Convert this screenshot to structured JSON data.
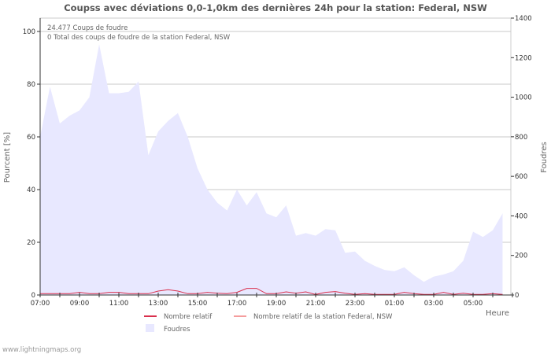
{
  "chart_data": {
    "type": "area",
    "title": "Coupss avec déviations 0,0-1,0km des dernières 24h pour la station: Federal, NSW",
    "xlabel": "Heure",
    "ylabel_left": "Pourcent   [%]",
    "ylabel_right": "Foudres",
    "ylim_left": [
      0,
      105
    ],
    "ylim_right": [
      0,
      1400
    ],
    "left_ticks": [
      0,
      20,
      40,
      60,
      80,
      100
    ],
    "right_ticks": [
      0,
      200,
      400,
      600,
      800,
      1000,
      1200,
      1400
    ],
    "x_tick_labels": [
      "07:00",
      "09:00",
      "11:00",
      "13:00",
      "15:00",
      "17:00",
      "19:00",
      "21:00",
      "23:00",
      "01:00",
      "03:00",
      "05:00"
    ],
    "x_hours_start": "07:00",
    "x_step_hours": 0.5,
    "info_lines": [
      "24.477  Coups de foudre",
      "0 Total des coups de foudre de la station Federal, NSW"
    ],
    "grid": true,
    "legend": [
      {
        "label": "Nombre relatif",
        "color": "#d9304d",
        "type": "line"
      },
      {
        "label": "Nombre relatif de la station Federal, NSW",
        "color": "#f59d9d",
        "type": "line"
      },
      {
        "label": "Foudres",
        "color": "#e8e8ff",
        "type": "area"
      }
    ],
    "series": [
      {
        "name": "Foudres",
        "axis": "right",
        "values": [
          800,
          1053,
          867,
          907,
          933,
          1000,
          1267,
          1020,
          1020,
          1027,
          1080,
          707,
          827,
          880,
          920,
          800,
          640,
          533,
          467,
          427,
          533,
          453,
          520,
          413,
          393,
          453,
          300,
          313,
          300,
          333,
          327,
          213,
          220,
          173,
          147,
          127,
          120,
          140,
          100,
          67,
          93,
          104,
          120,
          173,
          320,
          293,
          327,
          413
        ]
      },
      {
        "name": "Nombre relatif",
        "axis": "left",
        "values": [
          0.5,
          0.5,
          0.5,
          0.5,
          1,
          0.5,
          0.5,
          1,
          1,
          0.5,
          0.5,
          0.5,
          1.5,
          2,
          1.5,
          0.5,
          0.5,
          1,
          0.7,
          0.5,
          1,
          2.5,
          2.5,
          0.5,
          0.5,
          1.2,
          0.7,
          1.2,
          0.2,
          1,
          1.3,
          0.7,
          0.2,
          0.5,
          0.2,
          0.2,
          0.2,
          1,
          0.5,
          0.2,
          0.2,
          1,
          0.2,
          0.7,
          0.2,
          0.2,
          0.5,
          0.2
        ]
      },
      {
        "name": "Nombre relatif de la station Federal, NSW",
        "axis": "left",
        "values": [
          0,
          0,
          0,
          0,
          0,
          0,
          0,
          0,
          0,
          0,
          0,
          0,
          0,
          0,
          0,
          0,
          0,
          0,
          0,
          0,
          0,
          0,
          0,
          0,
          0,
          0,
          0,
          0,
          0,
          0,
          0,
          0,
          0,
          0,
          0,
          0,
          0,
          0,
          0,
          0,
          0,
          0,
          0,
          0,
          0,
          0,
          0,
          0
        ]
      }
    ]
  },
  "footer": "www.lightningmaps.org",
  "colors": {
    "area": "#e8e8ff",
    "relative": "#d9304d",
    "grid": "#c8c8c8",
    "axis": "#333333"
  }
}
